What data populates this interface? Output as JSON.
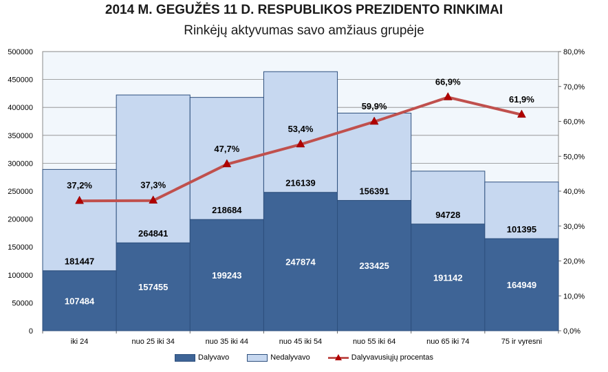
{
  "header": {
    "title": "2014 M. GEGUŽĖS 11 D. RESPUBLIKOS PREZIDENTO RINKIMAI",
    "subtitle": "Rinkėjų aktyvumas savo amžiaus grupėje"
  },
  "chart_data": {
    "type": "bar",
    "stacked": true,
    "title": "2014 M. GEGUŽĖS 11 D. RESPUBLIKOS PREZIDENTO RINKIMAI",
    "subtitle": "Rinkėjų aktyvumas savo amžiaus grupėje",
    "categories": [
      "iki 24",
      "nuo 25 iki 34",
      "nuo 35 iki 44",
      "nuo 45 iki 54",
      "nuo 55 iki 64",
      "nuo 65 iki 74",
      "75 ir vyresni"
    ],
    "series": [
      {
        "name": "Dalyvavo",
        "type": "bar",
        "values": [
          107484,
          157455,
          199243,
          247874,
          233425,
          191142,
          164949
        ],
        "color": "#3e6496"
      },
      {
        "name": "Nedalyvavo",
        "type": "bar",
        "values": [
          181447,
          264841,
          218684,
          216139,
          156391,
          94728,
          101395
        ],
        "color": "#c7d8f0"
      },
      {
        "name": "Dalyvavusiųjų procentas",
        "type": "line",
        "axis": "right",
        "values": [
          37.2,
          37.3,
          47.7,
          53.4,
          59.9,
          66.9,
          61.9
        ],
        "labels": [
          "37,2%",
          "37,3%",
          "47,7%",
          "53,4%",
          "59,9%",
          "66,9%",
          "61,9%"
        ],
        "color": "#c0504d"
      }
    ],
    "ylim": [
      0,
      500000
    ],
    "yticks": [
      "0",
      "50000",
      "100000",
      "150000",
      "200000",
      "250000",
      "300000",
      "350000",
      "400000",
      "450000",
      "500000"
    ],
    "y2lim": [
      0,
      80
    ],
    "y2ticks": [
      "0,0%",
      "10,0%",
      "20,0%",
      "30,0%",
      "40,0%",
      "50,0%",
      "60,0%",
      "70,0%",
      "80,0%"
    ],
    "grid": true,
    "legend_position": "bottom"
  }
}
